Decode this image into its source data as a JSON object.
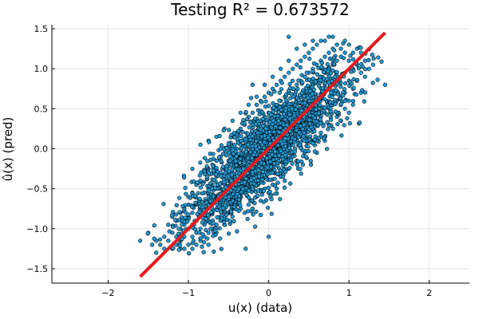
{
  "chart_data": {
    "type": "scatter",
    "title": "Testing R² = 0.673572",
    "xlabel": "u(x) (data)",
    "ylabel": "û(x) (pred)",
    "xlim": [
      -2.7,
      2.5
    ],
    "ylim": [
      -1.68,
      1.55
    ],
    "xticks": [
      -2,
      -1,
      0,
      1,
      2
    ],
    "yticks": [
      -1.5,
      -1.0,
      -0.5,
      0.0,
      0.5,
      1.0,
      1.5
    ],
    "xtick_labels": [
      "−2",
      "−1",
      "0",
      "1",
      "2"
    ],
    "ytick_labels": [
      "−1.5",
      "−1.0",
      "−0.5",
      "0.0",
      "0.5",
      "1.0",
      "1.5"
    ],
    "grid": true,
    "legend": "none",
    "colors": {
      "points": "#1f9bd7",
      "point_edge": "#000000",
      "fit_line": "#e31a1c"
    },
    "fit_line": {
      "x": [
        -1.6,
        1.45
      ],
      "y": [
        -1.6,
        1.45
      ]
    },
    "points_summary": "dense elliptical cloud along y≈0.85x, x from about -1.6 to 1.5",
    "points": [
      [
        -1.6,
        -1.15
      ],
      [
        -1.45,
        -1.2
      ],
      [
        -1.4,
        -1.3
      ],
      [
        -1.35,
        -1.2
      ],
      [
        -1.3,
        -1.1
      ],
      [
        -1.3,
        -1.25
      ],
      [
        -1.25,
        -0.95
      ],
      [
        -1.25,
        -1.15
      ],
      [
        -1.2,
        -1.05
      ],
      [
        -1.2,
        -1.25
      ],
      [
        -1.15,
        -0.9
      ],
      [
        -1.15,
        -1.1
      ],
      [
        -1.15,
        -1.2
      ],
      [
        -1.1,
        -0.8
      ],
      [
        -1.1,
        -1.0
      ],
      [
        -1.1,
        -1.15
      ],
      [
        -1.05,
        -0.75
      ],
      [
        -1.05,
        -0.95
      ],
      [
        -1.05,
        -1.1
      ],
      [
        -1.05,
        -1.25
      ],
      [
        -1.0,
        -0.6
      ],
      [
        -1.0,
        -0.85
      ],
      [
        -1.0,
        -1.0
      ],
      [
        -1.0,
        -1.2
      ],
      [
        -0.95,
        -0.55
      ],
      [
        -0.95,
        -0.8
      ],
      [
        -0.95,
        -0.95
      ],
      [
        -0.95,
        -1.1
      ],
      [
        -0.9,
        -0.45
      ],
      [
        -0.9,
        -0.7
      ],
      [
        -0.9,
        -0.9
      ],
      [
        -0.9,
        -1.05
      ],
      [
        -0.9,
        -1.2
      ],
      [
        -0.85,
        -0.4
      ],
      [
        -0.85,
        -0.65
      ],
      [
        -0.85,
        -0.85
      ],
      [
        -0.85,
        -1.0
      ],
      [
        -0.8,
        -0.3
      ],
      [
        -0.8,
        -0.55
      ],
      [
        -0.8,
        -0.75
      ],
      [
        -0.8,
        -0.95
      ],
      [
        -0.8,
        -1.1
      ],
      [
        -0.75,
        -0.25
      ],
      [
        -0.75,
        -0.5
      ],
      [
        -0.75,
        -0.7
      ],
      [
        -0.75,
        -0.9
      ],
      [
        -0.75,
        -1.05
      ],
      [
        -0.7,
        -0.2
      ],
      [
        -0.7,
        -0.45
      ],
      [
        -0.7,
        -0.65
      ],
      [
        -0.7,
        -0.8
      ],
      [
        -0.7,
        -1.0
      ],
      [
        -0.65,
        -0.15
      ],
      [
        -0.65,
        -0.35
      ],
      [
        -0.65,
        -0.6
      ],
      [
        -0.65,
        -0.75
      ],
      [
        -0.65,
        -0.95
      ],
      [
        -0.6,
        -0.1
      ],
      [
        -0.6,
        -0.3
      ],
      [
        -0.6,
        -0.5
      ],
      [
        -0.6,
        -0.7
      ],
      [
        -0.6,
        -0.9
      ],
      [
        -0.55,
        0.0
      ],
      [
        -0.55,
        -0.25
      ],
      [
        -0.55,
        -0.45
      ],
      [
        -0.55,
        -0.65
      ],
      [
        -0.55,
        -0.85
      ],
      [
        -0.5,
        0.05
      ],
      [
        -0.5,
        -0.15
      ],
      [
        -0.5,
        -0.4
      ],
      [
        -0.5,
        -0.6
      ],
      [
        -0.5,
        -0.8
      ],
      [
        -0.45,
        0.15
      ],
      [
        -0.45,
        -0.1
      ],
      [
        -0.45,
        -0.3
      ],
      [
        -0.45,
        -0.55
      ],
      [
        -0.45,
        -0.75
      ],
      [
        -0.4,
        0.2
      ],
      [
        -0.4,
        0.0
      ],
      [
        -0.4,
        -0.25
      ],
      [
        -0.4,
        -0.45
      ],
      [
        -0.4,
        -0.7
      ],
      [
        -0.35,
        0.25
      ],
      [
        -0.35,
        0.05
      ],
      [
        -0.35,
        -0.2
      ],
      [
        -0.35,
        -0.4
      ],
      [
        -0.35,
        -0.6
      ],
      [
        -0.3,
        0.3
      ],
      [
        -0.3,
        0.1
      ],
      [
        -0.3,
        -0.1
      ],
      [
        -0.3,
        -0.35
      ],
      [
        -0.3,
        -0.55
      ],
      [
        -0.25,
        0.4
      ],
      [
        -0.25,
        0.15
      ],
      [
        -0.25,
        -0.05
      ],
      [
        -0.25,
        -0.3
      ],
      [
        -0.25,
        -0.5
      ],
      [
        -0.2,
        0.45
      ],
      [
        -0.2,
        0.2
      ],
      [
        -0.2,
        0.0
      ],
      [
        -0.2,
        -0.2
      ],
      [
        -0.2,
        -0.45
      ],
      [
        -0.15,
        0.55
      ],
      [
        -0.15,
        0.3
      ],
      [
        -0.15,
        0.05
      ],
      [
        -0.15,
        -0.15
      ],
      [
        -0.15,
        -0.4
      ],
      [
        -0.1,
        0.6
      ],
      [
        -0.1,
        0.35
      ],
      [
        -0.1,
        0.1
      ],
      [
        -0.1,
        -0.1
      ],
      [
        -0.1,
        -0.35
      ],
      [
        -0.05,
        0.65
      ],
      [
        -0.05,
        0.4
      ],
      [
        -0.05,
        0.2
      ],
      [
        -0.05,
        -0.05
      ],
      [
        -0.05,
        -0.3
      ],
      [
        0.0,
        0.7
      ],
      [
        0.0,
        0.45
      ],
      [
        0.0,
        0.25
      ],
      [
        0.0,
        0.0
      ],
      [
        0.0,
        -0.25
      ],
      [
        0.0,
        -1.1
      ],
      [
        0.05,
        0.75
      ],
      [
        0.05,
        0.5
      ],
      [
        0.05,
        0.3
      ],
      [
        0.05,
        0.05
      ],
      [
        0.05,
        -0.2
      ],
      [
        0.1,
        0.8
      ],
      [
        0.1,
        0.55
      ],
      [
        0.1,
        0.35
      ],
      [
        0.1,
        0.1
      ],
      [
        0.1,
        -0.15
      ],
      [
        0.15,
        0.85
      ],
      [
        0.15,
        0.6
      ],
      [
        0.15,
        0.4
      ],
      [
        0.15,
        0.15
      ],
      [
        0.15,
        -0.1
      ],
      [
        0.2,
        0.9
      ],
      [
        0.2,
        0.65
      ],
      [
        0.2,
        0.45
      ],
      [
        0.2,
        0.2
      ],
      [
        0.2,
        -0.05
      ],
      [
        0.25,
        0.95
      ],
      [
        0.25,
        0.7
      ],
      [
        0.25,
        0.5
      ],
      [
        0.25,
        0.25
      ],
      [
        0.25,
        0.0
      ],
      [
        0.3,
        1.0
      ],
      [
        0.3,
        0.75
      ],
      [
        0.3,
        0.55
      ],
      [
        0.3,
        0.3
      ],
      [
        0.3,
        0.05
      ],
      [
        0.35,
        1.05
      ],
      [
        0.35,
        0.8
      ],
      [
        0.35,
        0.6
      ],
      [
        0.35,
        0.35
      ],
      [
        0.35,
        0.1
      ],
      [
        0.4,
        1.1
      ],
      [
        0.4,
        0.85
      ],
      [
        0.4,
        0.65
      ],
      [
        0.4,
        0.4
      ],
      [
        0.4,
        0.15
      ],
      [
        0.45,
        1.15
      ],
      [
        0.45,
        0.9
      ],
      [
        0.45,
        0.7
      ],
      [
        0.45,
        0.45
      ],
      [
        0.45,
        0.2
      ],
      [
        0.5,
        1.2
      ],
      [
        0.5,
        0.95
      ],
      [
        0.5,
        0.75
      ],
      [
        0.5,
        0.5
      ],
      [
        0.5,
        0.25
      ],
      [
        0.55,
        1.25
      ],
      [
        0.55,
        1.0
      ],
      [
        0.55,
        0.8
      ],
      [
        0.55,
        0.55
      ],
      [
        0.55,
        0.3
      ],
      [
        0.6,
        1.3
      ],
      [
        0.6,
        1.05
      ],
      [
        0.6,
        0.85
      ],
      [
        0.6,
        0.6
      ],
      [
        0.6,
        0.35
      ],
      [
        0.65,
        1.35
      ],
      [
        0.65,
        1.1
      ],
      [
        0.65,
        0.9
      ],
      [
        0.65,
        0.65
      ],
      [
        0.65,
        0.4
      ],
      [
        0.7,
        1.35
      ],
      [
        0.7,
        1.15
      ],
      [
        0.7,
        0.95
      ],
      [
        0.7,
        0.7
      ],
      [
        0.7,
        0.45
      ],
      [
        0.75,
        1.4
      ],
      [
        0.75,
        1.2
      ],
      [
        0.75,
        1.0
      ],
      [
        0.75,
        0.75
      ],
      [
        0.75,
        0.5
      ],
      [
        0.8,
        1.4
      ],
      [
        0.8,
        1.25
      ],
      [
        0.8,
        1.05
      ],
      [
        0.8,
        0.8
      ],
      [
        0.8,
        0.55
      ],
      [
        0.85,
        1.3
      ],
      [
        0.85,
        1.1
      ],
      [
        0.85,
        0.85
      ],
      [
        0.85,
        0.6
      ],
      [
        0.9,
        1.25
      ],
      [
        0.9,
        1.15
      ],
      [
        0.9,
        0.9
      ],
      [
        0.9,
        0.65
      ],
      [
        0.95,
        1.35
      ],
      [
        0.95,
        1.2
      ],
      [
        0.95,
        0.95
      ],
      [
        0.95,
        0.7
      ],
      [
        1.0,
        1.3
      ],
      [
        1.0,
        1.1
      ],
      [
        1.0,
        0.85
      ],
      [
        1.0,
        0.6
      ],
      [
        1.05,
        1.2
      ],
      [
        1.05,
        1.0
      ],
      [
        1.05,
        0.75
      ],
      [
        1.1,
        1.25
      ],
      [
        1.1,
        1.05
      ],
      [
        1.1,
        0.85
      ],
      [
        1.15,
        1.2
      ],
      [
        1.15,
        0.95
      ],
      [
        1.2,
        1.1
      ],
      [
        1.2,
        0.9
      ],
      [
        1.25,
        1.0
      ],
      [
        1.3,
        1.05
      ],
      [
        1.45,
        0.8
      ],
      [
        -1.5,
        -1.05
      ],
      [
        -1.4,
        -1.15
      ],
      [
        -1.2,
        -0.85
      ],
      [
        -1.1,
        -1.25
      ],
      [
        -1.0,
        -0.7
      ],
      [
        -0.95,
        -1.25
      ],
      [
        -0.85,
        -1.15
      ],
      [
        -0.75,
        -1.2
      ],
      [
        -0.65,
        -1.05
      ],
      [
        -0.55,
        -0.95
      ],
      [
        -0.45,
        -0.85
      ],
      [
        -0.35,
        -0.75
      ],
      [
        -0.25,
        -0.7
      ],
      [
        -0.15,
        -0.6
      ],
      [
        -0.05,
        -0.5
      ],
      [
        0.05,
        -0.45
      ],
      [
        0.15,
        -0.35
      ],
      [
        0.25,
        -0.25
      ],
      [
        0.35,
        -0.15
      ],
      [
        0.45,
        -0.05
      ],
      [
        0.55,
        0.1
      ],
      [
        0.65,
        0.2
      ],
      [
        0.75,
        0.3
      ],
      [
        0.85,
        0.4
      ],
      [
        0.95,
        0.5
      ],
      [
        1.05,
        0.55
      ],
      [
        1.15,
        0.7
      ],
      [
        -0.85,
        0.05
      ],
      [
        -0.95,
        -0.25
      ],
      [
        -0.75,
        0.1
      ],
      [
        -0.65,
        0.15
      ],
      [
        -0.55,
        0.25
      ],
      [
        -0.45,
        0.35
      ],
      [
        -0.35,
        0.45
      ],
      [
        -0.25,
        0.55
      ],
      [
        -0.15,
        0.65
      ],
      [
        -0.05,
        0.8
      ],
      [
        0.05,
        0.9
      ],
      [
        0.15,
        1.0
      ],
      [
        0.25,
        1.1
      ],
      [
        0.35,
        1.25
      ],
      [
        0.45,
        1.3
      ],
      [
        0.55,
        1.35
      ],
      [
        0.25,
        1.4
      ],
      [
        -0.2,
        0.8
      ],
      [
        0.6,
        -0.05
      ],
      [
        0.7,
        0.1
      ],
      [
        0.8,
        0.25
      ],
      [
        0.9,
        0.35
      ],
      [
        1.0,
        0.45
      ],
      [
        -0.3,
        -0.8
      ],
      [
        -0.2,
        -0.75
      ],
      [
        -0.1,
        -0.65
      ],
      [
        0.0,
        -0.55
      ],
      [
        0.1,
        -0.5
      ],
      [
        0.2,
        -0.4
      ]
    ]
  }
}
